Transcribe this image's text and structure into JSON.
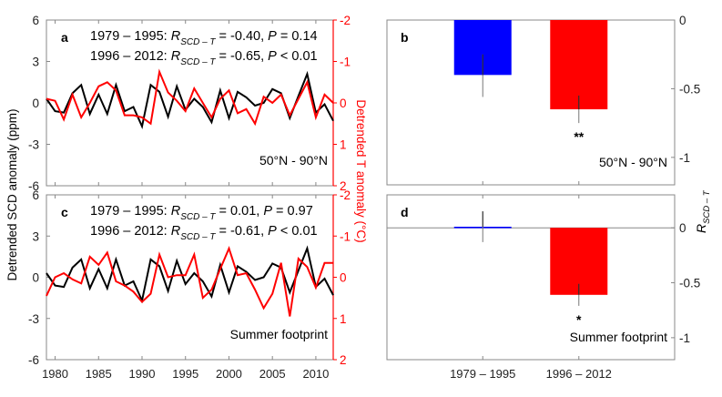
{
  "chart_data": [
    {
      "id": "a",
      "type": "line",
      "panel_label": "a",
      "region": "50°N - 90°N",
      "stats": [
        {
          "period": "1979 – 1995: ",
          "r_sym": "R",
          "r_sub": "SCD – T",
          "r_val": " = -0.40, ",
          "p_sym": "P",
          "p_val": " = 0.14"
        },
        {
          "period": "1996 – 2012: ",
          "r_sym": "R",
          "r_sub": "SCD – T",
          "r_val": " = -0.65, ",
          "p_sym": "P",
          "p_val": " < 0.01"
        }
      ],
      "x": [
        1979,
        1980,
        1981,
        1982,
        1983,
        1984,
        1985,
        1986,
        1987,
        1988,
        1989,
        1990,
        1991,
        1992,
        1993,
        1994,
        1995,
        1996,
        1997,
        1998,
        1999,
        2000,
        2001,
        2002,
        2003,
        2004,
        2005,
        2006,
        2007,
        2008,
        2009,
        2010,
        2011,
        2012
      ],
      "series": [
        {
          "name": "Detrended SCD anomaly (ppm)",
          "axis": "left",
          "color": "#000000",
          "values": [
            0.3,
            -0.6,
            -0.7,
            0.7,
            1.3,
            -0.8,
            0.6,
            -0.8,
            1.3,
            -0.6,
            -0.3,
            -1.7,
            1.3,
            0.8,
            -1.0,
            1.2,
            -0.5,
            0.3,
            -0.3,
            -1.4,
            0.9,
            -1.1,
            0.8,
            0.4,
            -0.2,
            0.0,
            1.0,
            0.7,
            -1.1,
            0.5,
            2.1,
            -0.7,
            -0.1,
            -1.3
          ]
        },
        {
          "name": "Detrended T anomaly (°C)",
          "axis": "right",
          "color": "#ff0000",
          "values": [
            -0.1,
            -0.05,
            0.4,
            -0.2,
            0.35,
            0.0,
            -0.4,
            -0.5,
            -0.3,
            0.3,
            0.3,
            0.35,
            0.5,
            -0.75,
            -0.25,
            -0.05,
            0.2,
            -0.35,
            0.0,
            0.35,
            -0.1,
            -0.3,
            0.25,
            0.15,
            0.5,
            -0.15,
            0.0,
            -0.2,
            0.3,
            -0.1,
            -0.5,
            0.35,
            -0.2,
            0.0
          ]
        }
      ],
      "ylim_left": [
        -6,
        6
      ],
      "yticks_left": [
        "6",
        "3",
        "0",
        "-3",
        "-6"
      ],
      "ylim_right_inverted": [
        -2,
        2
      ],
      "yticks_right": [
        "-2",
        "-1",
        "0",
        "1",
        "2"
      ]
    },
    {
      "id": "c",
      "type": "line",
      "panel_label": "c",
      "region": "Summer footprint",
      "stats": [
        {
          "period": "1979 – 1995: ",
          "r_sym": "R",
          "r_sub": "SCD – T",
          "r_val": " = 0.01, ",
          "p_sym": "P",
          "p_val": " = 0.97"
        },
        {
          "period": "1996 – 2012: ",
          "r_sym": "R",
          "r_sub": "SCD – T",
          "r_val": " = -0.61, ",
          "p_sym": "P",
          "p_val": " < 0.01"
        }
      ],
      "x": [
        1979,
        1980,
        1981,
        1982,
        1983,
        1984,
        1985,
        1986,
        1987,
        1988,
        1989,
        1990,
        1991,
        1992,
        1993,
        1994,
        1995,
        1996,
        1997,
        1998,
        1999,
        2000,
        2001,
        2002,
        2003,
        2004,
        2005,
        2006,
        2007,
        2008,
        2009,
        2010,
        2011,
        2012
      ],
      "series": [
        {
          "name": "Detrended SCD anomaly (ppm)",
          "axis": "left",
          "color": "#000000",
          "values": [
            0.3,
            -0.6,
            -0.7,
            0.7,
            1.3,
            -0.8,
            0.6,
            -0.8,
            1.3,
            -0.6,
            -0.3,
            -1.7,
            1.3,
            0.8,
            -1.0,
            1.2,
            -0.5,
            0.3,
            -0.3,
            -1.4,
            0.9,
            -1.1,
            0.8,
            0.4,
            -0.2,
            0.0,
            1.0,
            0.7,
            -1.1,
            0.5,
            2.1,
            -0.7,
            -0.1,
            -1.3
          ]
        },
        {
          "name": "Detrended T anomaly (°C)",
          "axis": "right",
          "color": "#ff0000",
          "values": [
            0.45,
            0.0,
            -0.1,
            0.05,
            0.15,
            -0.5,
            -0.3,
            -0.6,
            0.1,
            0.2,
            0.35,
            0.6,
            0.4,
            -0.55,
            0.0,
            -0.05,
            -0.05,
            -0.55,
            0.5,
            0.3,
            -0.2,
            -0.7,
            -0.05,
            -0.1,
            0.3,
            0.75,
            0.4,
            -0.35,
            0.95,
            -0.45,
            -0.25,
            0.25,
            -0.35,
            -0.35
          ]
        }
      ],
      "ylim_left": [
        -6,
        6
      ],
      "yticks_left": [
        "6",
        "3",
        "0",
        "-3",
        "-6"
      ],
      "ylim_right_inverted": [
        -2,
        2
      ],
      "yticks_right": [
        "-2",
        "-1",
        "0",
        "1",
        "2"
      ],
      "xticks": [
        "1980",
        "1985",
        "1990",
        "1995",
        "2000",
        "2005",
        "2010"
      ],
      "xlim": [
        1979,
        2012
      ]
    },
    {
      "id": "b",
      "type": "bar",
      "panel_label": "b",
      "region": "50°N - 90°N",
      "categories": [
        "1979 – 1995",
        "1996 – 2012"
      ],
      "values": [
        -0.4,
        -0.65
      ],
      "errors_low": [
        -0.56,
        -0.75
      ],
      "errors_high": [
        -0.25,
        -0.55
      ],
      "colors": [
        "#0000ff",
        "#ff0000"
      ],
      "significance": [
        "",
        "**"
      ],
      "ylim": [
        -1.2,
        0
      ],
      "yticks": [
        "0",
        "-0.5",
        "-1"
      ]
    },
    {
      "id": "d",
      "type": "bar",
      "panel_label": "d",
      "region": "Summer footprint",
      "categories": [
        "1979 – 1995",
        "1996 – 2012"
      ],
      "values": [
        0.01,
        -0.61
      ],
      "errors_low": [
        -0.13,
        -0.71
      ],
      "errors_high": [
        0.15,
        -0.51
      ],
      "colors": [
        "#0000ff",
        "#ff0000"
      ],
      "significance": [
        "",
        "*"
      ],
      "ylim": [
        -1.2,
        0.3
      ],
      "yticks": [
        "0",
        "-0.5",
        "-1"
      ]
    }
  ],
  "labels": {
    "left_ylabel": "Detrended SCD anomaly (ppm)",
    "right_ylabel": "Detrended T anomaly (°C)",
    "bar_ylabel_main": "R",
    "bar_ylabel_sub": "SCD – T"
  }
}
